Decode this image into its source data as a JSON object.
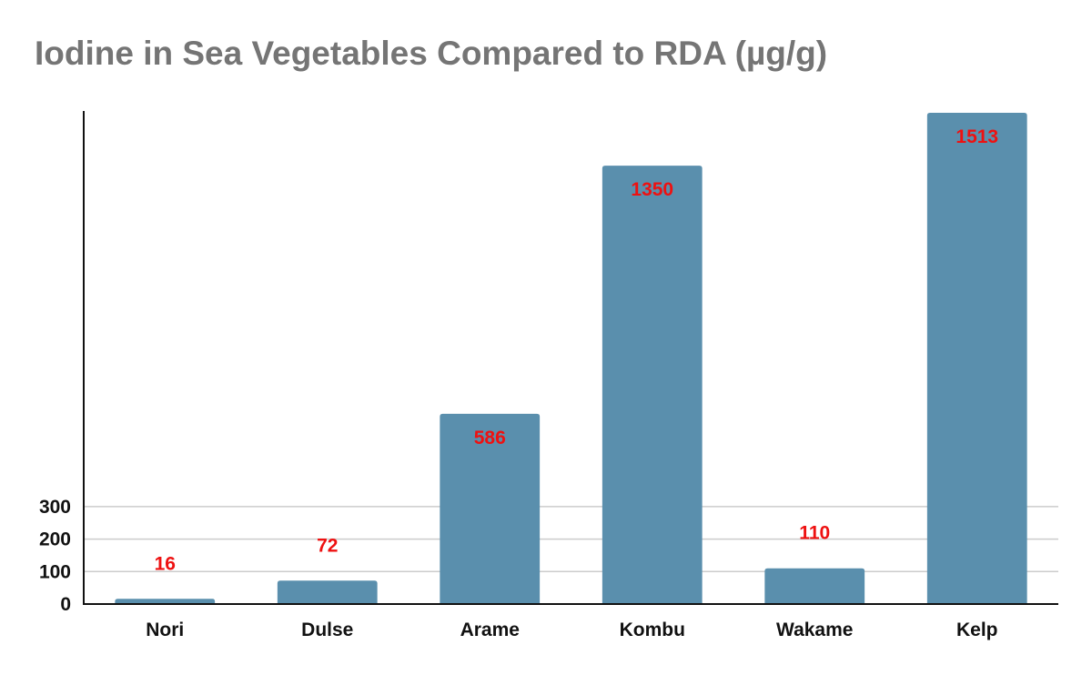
{
  "chart_data": {
    "type": "bar",
    "title": "Iodine in Sea Vegetables Compared to RDA (µg/g)",
    "xlabel": "",
    "ylabel": "",
    "categories": [
      "Nori",
      "Dulse",
      "Arame",
      "Kombu",
      "Wakame",
      "Kelp"
    ],
    "values": [
      16,
      72,
      586,
      1350,
      110,
      1513
    ],
    "data_labels": [
      "16",
      "72",
      "586",
      "1350",
      "110",
      "1513"
    ],
    "y_ticks": [
      0,
      100,
      200,
      300
    ],
    "y_tick_labels": [
      "0",
      "100",
      "200",
      "300"
    ],
    "ylim": [
      0,
      1513
    ],
    "grid": true,
    "legend": "none",
    "colors": {
      "bar": "#5a8fad",
      "data_label": "#ee1111",
      "title": "#757575",
      "grid": "#cccccc",
      "axis": "#111111"
    }
  }
}
